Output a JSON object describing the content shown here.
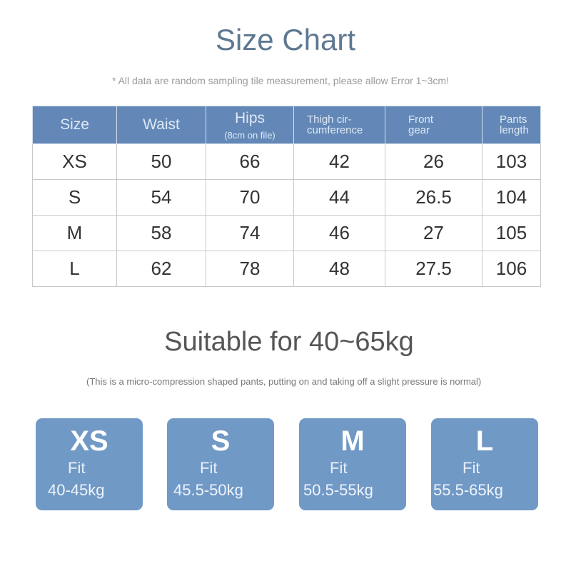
{
  "title": "Size Chart",
  "note": "* All data are random sampling tile measurement, please allow Error 1~3cm!",
  "table": {
    "headers": [
      {
        "label": "Size"
      },
      {
        "label": "Waist"
      },
      {
        "label": "Hips",
        "sub": "(8cm on file)"
      },
      {
        "label": "Thigh cir-",
        "label2": "cumference"
      },
      {
        "label": "Front",
        "label2": "gear"
      },
      {
        "label": "Pants",
        "label2": "length"
      }
    ],
    "rows": [
      [
        "XS",
        "50",
        "66",
        "42",
        "26",
        "103"
      ],
      [
        "S",
        "54",
        "70",
        "44",
        "26.5",
        "104"
      ],
      [
        "M",
        "58",
        "74",
        "46",
        "27",
        "105"
      ],
      [
        "L",
        "62",
        "78",
        "48",
        "27.5",
        "106"
      ]
    ]
  },
  "suitable": "Suitable for 40~65kg",
  "compression_note": "(This is a micro-compression shaped pants, putting on and taking off a slight pressure is normal)",
  "cards": [
    {
      "size": "XS",
      "fit": "Fit",
      "range": "40-45kg"
    },
    {
      "size": "S",
      "fit": "Fit",
      "range": "45.5-50kg"
    },
    {
      "size": "M",
      "fit": "Fit",
      "range": "50.5-55kg"
    },
    {
      "size": "L",
      "fit": "Fit",
      "range": "55.5-65kg"
    }
  ],
  "colors": {
    "header": "#6388b7",
    "card": "#7199c6",
    "title": "#5e7891"
  }
}
